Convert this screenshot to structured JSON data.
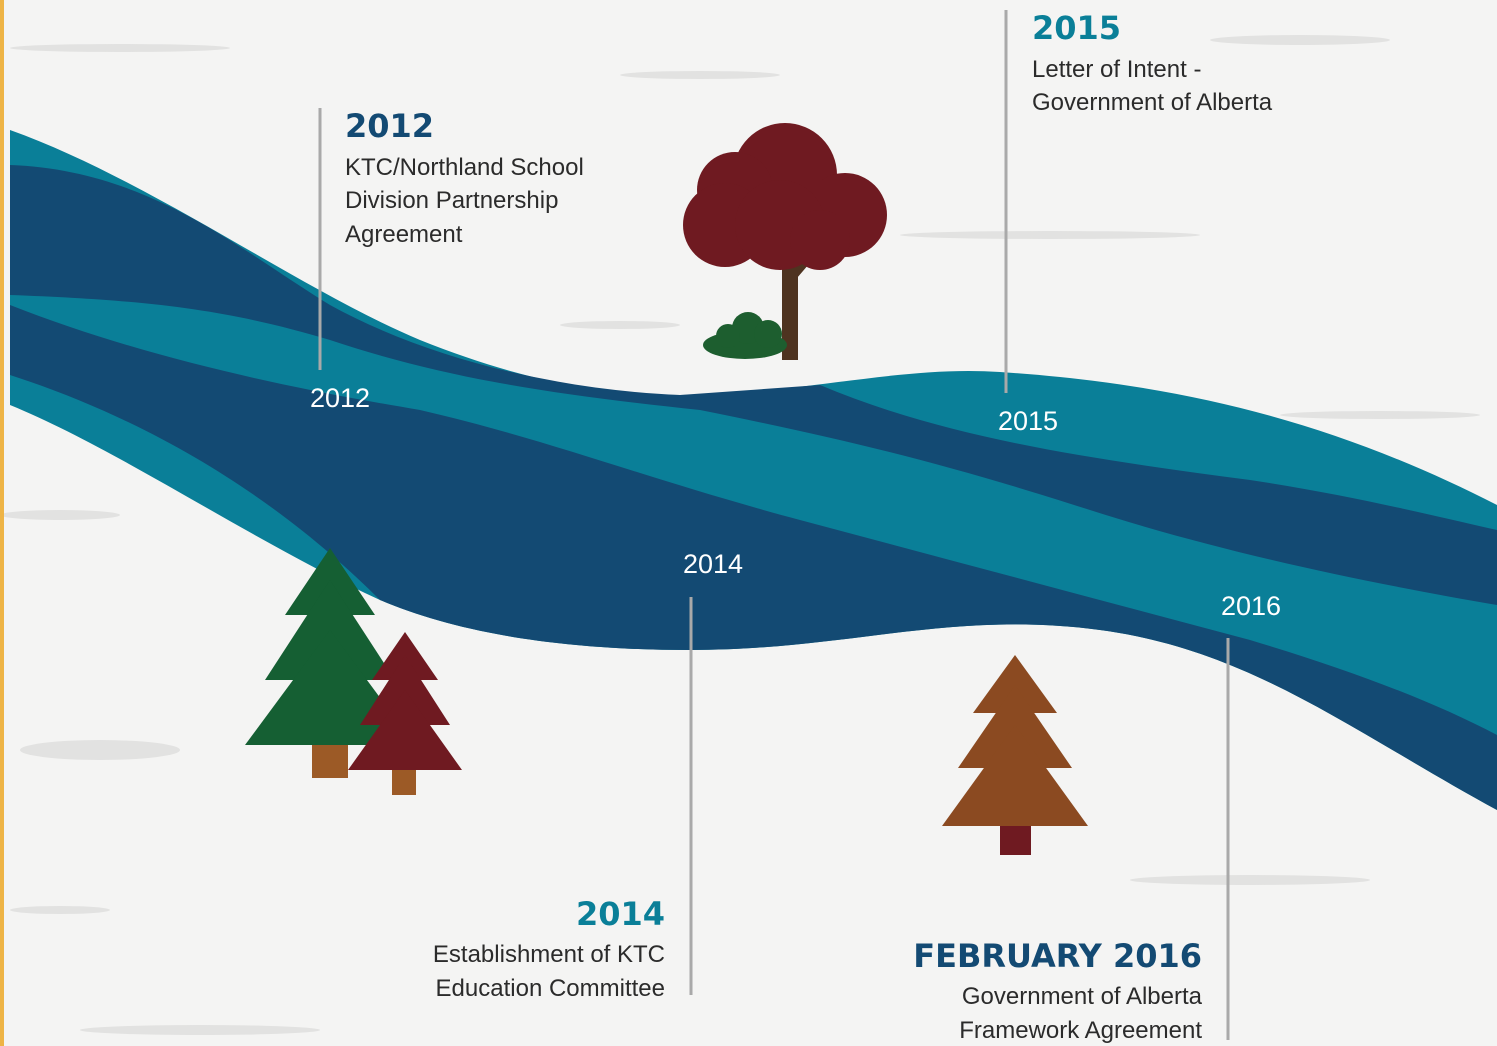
{
  "markers": [
    {
      "label": "2012"
    },
    {
      "label": "2014"
    },
    {
      "label": "2015"
    },
    {
      "label": "2016"
    }
  ],
  "events": [
    {
      "title": "2012",
      "lines": [
        "KTC/Northland School",
        "Division Partnership",
        "Agreement"
      ]
    },
    {
      "title": "2015",
      "lines": [
        "Letter of Intent -",
        "Government of Alberta"
      ]
    },
    {
      "title": "2014",
      "lines": [
        "Establishment of KTC",
        "Education Committee"
      ]
    },
    {
      "title": "FEBRUARY 2016",
      "lines": [
        "Government of Alberta",
        "Framework Agreement"
      ]
    }
  ]
}
